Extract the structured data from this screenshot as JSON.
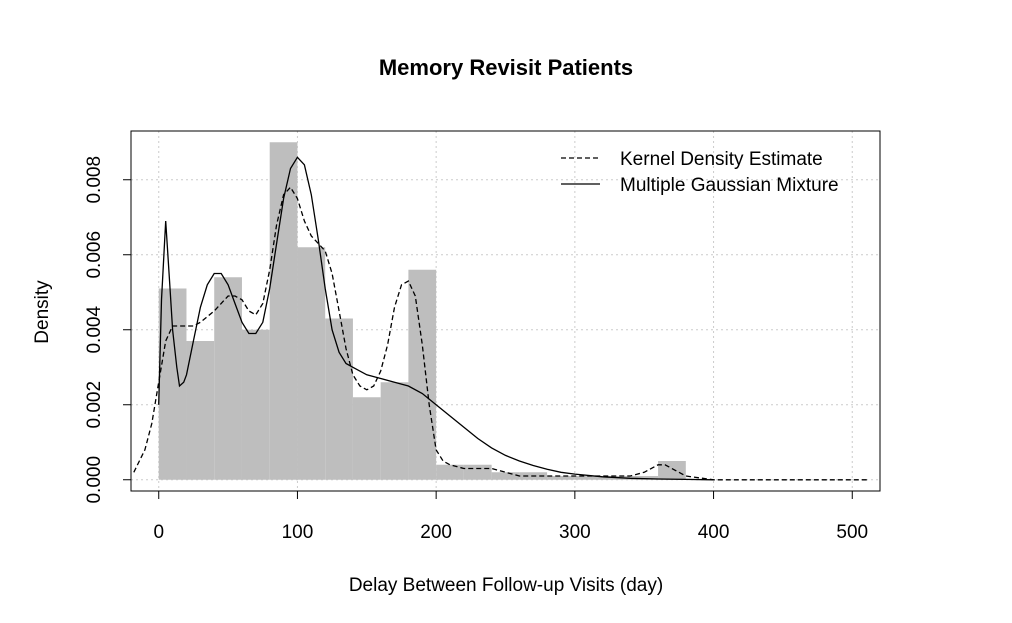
{
  "chart_data": {
    "type": "bar",
    "title": "Memory Revisit Patients",
    "xlabel": "Delay Between Follow-up Visits (day)",
    "ylabel": "Density",
    "xlim": [
      -20,
      520
    ],
    "ylim": [
      -0.0003,
      0.0093
    ],
    "xticks": [
      0,
      100,
      200,
      300,
      400,
      500
    ],
    "yticks": [
      "0.000",
      "0.002",
      "0.004",
      "0.006",
      "0.008"
    ],
    "grid": true,
    "legend_position": "top-right",
    "histogram": {
      "bin_width": 20,
      "color": "#bebebe",
      "bins": [
        {
          "x0": 0,
          "x1": 20,
          "density": 0.0051
        },
        {
          "x0": 20,
          "x1": 40,
          "density": 0.0037
        },
        {
          "x0": 40,
          "x1": 60,
          "density": 0.0054
        },
        {
          "x0": 60,
          "x1": 80,
          "density": 0.004
        },
        {
          "x0": 80,
          "x1": 100,
          "density": 0.009
        },
        {
          "x0": 100,
          "x1": 120,
          "density": 0.0062
        },
        {
          "x0": 120,
          "x1": 140,
          "density": 0.0043
        },
        {
          "x0": 140,
          "x1": 160,
          "density": 0.0022
        },
        {
          "x0": 160,
          "x1": 180,
          "density": 0.0026
        },
        {
          "x0": 180,
          "x1": 200,
          "density": 0.0056
        },
        {
          "x0": 200,
          "x1": 220,
          "density": 0.0004
        },
        {
          "x0": 220,
          "x1": 240,
          "density": 0.0004
        },
        {
          "x0": 240,
          "x1": 260,
          "density": 0.0002
        },
        {
          "x0": 260,
          "x1": 280,
          "density": 0.0002
        },
        {
          "x0": 280,
          "x1": 300,
          "density": 0.0001
        },
        {
          "x0": 300,
          "x1": 320,
          "density": 0.0001
        },
        {
          "x0": 320,
          "x1": 340,
          "density": 0.0001
        },
        {
          "x0": 340,
          "x1": 360,
          "density": 0.0001
        },
        {
          "x0": 360,
          "x1": 380,
          "density": 0.0005
        }
      ]
    },
    "series": [
      {
        "name": "Kernel Density Estimate",
        "style": "dashed",
        "color": "#000000",
        "x": [
          -18,
          -10,
          -5,
          0,
          5,
          10,
          15,
          20,
          25,
          30,
          40,
          50,
          55,
          60,
          65,
          70,
          75,
          80,
          85,
          90,
          95,
          100,
          105,
          110,
          115,
          120,
          125,
          130,
          135,
          140,
          145,
          150,
          155,
          160,
          165,
          170,
          175,
          180,
          185,
          190,
          195,
          200,
          205,
          210,
          220,
          240,
          260,
          280,
          300,
          320,
          340,
          350,
          360,
          365,
          370,
          380,
          390,
          400,
          450,
          500,
          512
        ],
        "y": [
          0.0002,
          0.0008,
          0.0015,
          0.0026,
          0.0037,
          0.0041,
          0.0041,
          0.0041,
          0.0041,
          0.0042,
          0.0045,
          0.0049,
          0.0049,
          0.0048,
          0.0045,
          0.0044,
          0.0047,
          0.0056,
          0.0068,
          0.0076,
          0.0078,
          0.0075,
          0.0069,
          0.0065,
          0.0063,
          0.0061,
          0.0055,
          0.0045,
          0.0035,
          0.0028,
          0.0025,
          0.0024,
          0.0025,
          0.0029,
          0.0036,
          0.0046,
          0.0052,
          0.0053,
          0.0049,
          0.0036,
          0.002,
          0.0008,
          0.0005,
          0.0004,
          0.0003,
          0.0003,
          0.0001,
          0.0001,
          0.0001,
          0.0001,
          0.0001,
          0.0002,
          0.0004,
          0.0004,
          0.0003,
          0.0001,
          5e-05,
          0.0,
          0.0,
          0.0,
          0.0
        ]
      },
      {
        "name": "Multiple Gaussian Mixture",
        "style": "solid",
        "color": "#000000",
        "x": [
          0,
          2,
          5,
          8,
          10,
          13,
          15,
          18,
          20,
          25,
          30,
          35,
          40,
          45,
          50,
          55,
          60,
          65,
          70,
          75,
          80,
          85,
          90,
          95,
          100,
          105,
          110,
          115,
          120,
          125,
          130,
          135,
          140,
          150,
          160,
          170,
          180,
          190,
          200,
          210,
          220,
          230,
          240,
          250,
          260,
          270,
          280,
          290,
          300,
          320,
          340,
          360,
          380,
          400
        ],
        "y": [
          0.002,
          0.0048,
          0.0069,
          0.0052,
          0.004,
          0.003,
          0.0025,
          0.0026,
          0.0028,
          0.0037,
          0.0046,
          0.0052,
          0.0055,
          0.0055,
          0.0052,
          0.0047,
          0.0042,
          0.0039,
          0.0039,
          0.0042,
          0.0051,
          0.0063,
          0.0075,
          0.0083,
          0.0086,
          0.0084,
          0.0076,
          0.0064,
          0.0051,
          0.004,
          0.0034,
          0.0031,
          0.003,
          0.0028,
          0.0027,
          0.0026,
          0.0025,
          0.0023,
          0.002,
          0.0017,
          0.0014,
          0.0011,
          0.00085,
          0.00065,
          0.0005,
          0.00038,
          0.00028,
          0.0002,
          0.00015,
          8e-05,
          4e-05,
          2e-05,
          1e-05,
          0.0
        ]
      }
    ]
  }
}
